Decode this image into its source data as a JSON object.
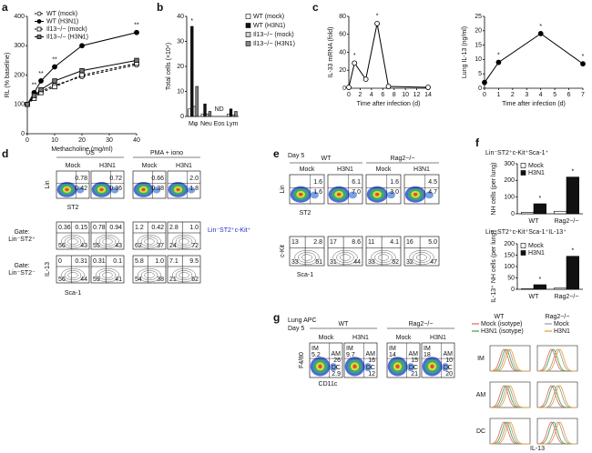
{
  "chart_data": [
    {
      "type": "line",
      "panel": "a",
      "ylabel": "RL (% baseline)",
      "xlabel": "Methacholine (mg/ml)",
      "x": [
        0,
        2.5,
        5,
        10,
        20,
        40
      ],
      "xlim": [
        0,
        40
      ],
      "xticks": [
        0,
        10,
        20,
        30,
        40
      ],
      "ylim": [
        0,
        400
      ],
      "yticks": [
        0,
        100,
        200,
        300,
        400
      ],
      "legend": "top-left",
      "series": [
        {
          "name": "WT (mock)",
          "color": "#000000",
          "fill": "#ffffff",
          "marker": "circle",
          "dashed": true,
          "values": [
            100,
            125,
            145,
            165,
            195,
            235
          ]
        },
        {
          "name": "WT (H3N1)",
          "color": "#000000",
          "fill": "#000000",
          "marker": "circle",
          "dashed": false,
          "values": [
            100,
            140,
            180,
            228,
            300,
            345
          ],
          "annotations": [
            null,
            "**",
            "**",
            "**",
            "*",
            "**"
          ]
        },
        {
          "name": "Il13−/− (mock)",
          "color": "#000000",
          "fill": "#ffffff",
          "marker": "square",
          "dashed": true,
          "values": [
            100,
            120,
            140,
            160,
            200,
            240
          ]
        },
        {
          "name": "Il13−/− (H3N1)",
          "color": "#000000",
          "fill": "#777777",
          "marker": "square",
          "dashed": false,
          "values": [
            100,
            130,
            150,
            180,
            215,
            250
          ]
        }
      ]
    },
    {
      "type": "bar",
      "panel": "b",
      "ylabel": "Total cells (×10⁴)",
      "categories": [
        "Mφ",
        "Neu",
        "Eos",
        "Lym"
      ],
      "ylim": [
        0,
        40
      ],
      "yticks": [
        0,
        10,
        20,
        30,
        40
      ],
      "legend": "right",
      "category_annotations": [
        null,
        null,
        "ND",
        null
      ],
      "series": [
        {
          "name": "WT (mock)",
          "color": "#ffffff",
          "values": [
            3,
            1,
            null,
            1
          ]
        },
        {
          "name": "WT (H3N1)",
          "color": "#111111",
          "values": [
            36,
            5,
            null,
            3
          ],
          "annotations": [
            "*",
            null,
            null,
            null
          ]
        },
        {
          "name": "Il13−/− (mock)",
          "color": "#d0d0d0",
          "values": [
            4,
            1,
            null,
            0.5
          ]
        },
        {
          "name": "Il13−/− (H3N1)",
          "color": "#888888",
          "values": [
            12,
            2,
            null,
            2
          ]
        }
      ]
    },
    {
      "type": "line",
      "panel": "c",
      "ylabel": "IL-33 mRNA (fold)",
      "xlabel": "Time after infection (d)",
      "x": [
        0,
        1,
        3,
        5,
        7,
        14
      ],
      "xlim": [
        0,
        14
      ],
      "xticks": [
        0,
        2,
        4,
        6,
        8,
        10,
        12,
        14
      ],
      "ylim": [
        0,
        80
      ],
      "yticks": [
        0,
        20,
        40,
        60,
        80
      ],
      "series": [
        {
          "color": "#000000",
          "fill": "#ffffff",
          "marker": "circle",
          "dashed": false,
          "values": [
            1,
            28,
            10,
            72,
            2,
            1
          ],
          "annotations": [
            null,
            "*",
            null,
            "*",
            null,
            null
          ]
        }
      ]
    },
    {
      "type": "line",
      "ylabel": "Lung IL-13 (ng/ml)",
      "xlabel": "Time after infection (d)",
      "x": [
        0,
        1,
        4,
        7
      ],
      "xlim": [
        0,
        7
      ],
      "xticks": [
        0,
        1,
        2,
        3,
        4,
        5,
        6,
        7
      ],
      "ylim": [
        0,
        25
      ],
      "yticks": [
        0,
        5,
        10,
        15,
        20,
        25
      ],
      "series": [
        {
          "color": "#000000",
          "fill": "#000000",
          "marker": "circle",
          "dashed": false,
          "values": [
            2,
            9,
            19,
            8.5
          ],
          "annotations": [
            null,
            "*",
            "*",
            "*"
          ]
        }
      ]
    },
    {
      "type": "bar",
      "panel": "f",
      "title": "Lin⁻ST2⁺c-Kit⁺Sca-1⁺",
      "ylabel": "NH cells (per lung)",
      "categories": [
        "WT",
        "Rag2−/−"
      ],
      "ylim": [
        0,
        300
      ],
      "yticks": [
        0,
        100,
        200,
        300
      ],
      "legend": "top-left",
      "series": [
        {
          "name": "Mock",
          "color": "#ffffff",
          "values": [
            8,
            15
          ]
        },
        {
          "name": "H3N1",
          "color": "#111111",
          "values": [
            60,
            220
          ],
          "annotations": [
            "*",
            "*"
          ]
        }
      ]
    },
    {
      "type": "bar",
      "title": "Lin⁻ST2⁺c-Kit⁺Sca-1⁺IL-13⁺",
      "ylabel": "IL-13⁺ NH cells (per lung)",
      "categories": [
        "WT",
        "Rag2−/−"
      ],
      "ylim": [
        0,
        200
      ],
      "yticks": [
        0,
        50,
        100,
        150,
        200
      ],
      "legend": "top-left",
      "series": [
        {
          "name": "Mock",
          "color": "#ffffff",
          "values": [
            2,
            5
          ]
        },
        {
          "name": "H3N1",
          "color": "#111111",
          "values": [
            20,
            145
          ],
          "annotations": [
            "*",
            "*"
          ]
        }
      ]
    }
  ],
  "panel_d": {
    "label": "d",
    "groups": [
      "US",
      "PMA + iono"
    ],
    "columns": [
      "Mock",
      "H3N1",
      "Mock",
      "H3N1"
    ],
    "axis_labels": [
      "Lin",
      "ST2",
      "IL-13",
      "Sca-1"
    ],
    "gates": [
      [
        "Gate:",
        "Lin⁻ST2⁺"
      ],
      [
        "Gate:",
        "Lin⁻ST2⁻"
      ]
    ],
    "rows": [
      [
        [
          "0.78",
          "0.42"
        ],
        [
          "0.72",
          "0.36"
        ],
        [
          "0.66",
          "0.38"
        ],
        [
          "2.0",
          "1.8"
        ]
      ],
      [
        [
          "0.36",
          "0.15",
          "56",
          "43"
        ],
        [
          "0.78",
          "0.94",
          "55",
          "43"
        ],
        [
          "1.2",
          "0.42",
          "62",
          "37"
        ],
        [
          "2.8",
          "1.0",
          "24",
          "72"
        ]
      ],
      [
        [
          "0",
          "0.31",
          "56",
          "44"
        ],
        [
          "0.31",
          "0.1",
          "59",
          "41"
        ],
        [
          "5.8",
          "1.0",
          "54",
          "38"
        ],
        [
          "7.1",
          "9.5",
          "21",
          "62"
        ]
      ]
    ]
  },
  "panel_e": {
    "label": "e",
    "day": "Day 5",
    "groups": [
      "WT",
      "Rag2−/−"
    ],
    "columns": [
      "Mock",
      "H3N1",
      "Mock",
      "H3N1"
    ],
    "axis_labels": [
      "Lin",
      "ST2",
      "c-Kit",
      "Sca-1"
    ],
    "gate": "Lin⁻ST2⁺c-Kit⁺",
    "rows": [
      [
        [
          "1.6",
          "1.6"
        ],
        [
          "6.1",
          "7.0"
        ],
        [
          "1.6",
          "3.0"
        ],
        [
          "4.5",
          "4.7"
        ]
      ],
      [
        [
          "13",
          "2.8",
          "33",
          "51"
        ],
        [
          "17",
          "8.6",
          "31",
          "44"
        ],
        [
          "11",
          "4.1",
          "33",
          "52"
        ],
        [
          "16",
          "5.0",
          "32",
          "47"
        ]
      ]
    ]
  },
  "panel_g": {
    "label": "g",
    "title": "Lung APC",
    "day": "Day 5",
    "groups": [
      "WT",
      "Rag2−/−"
    ],
    "columns": [
      "Mock",
      "H3N1",
      "Mock",
      "H3N1"
    ],
    "axis_labels": [
      "F4/80",
      "CD11c"
    ],
    "gate_names": [
      "IM",
      "AM",
      "DC"
    ],
    "values": [
      [
        "5.2",
        "26",
        "2.9"
      ],
      [
        "9.7",
        "16",
        "12"
      ],
      [
        "14",
        "15",
        "21"
      ],
      [
        "18",
        "10",
        "20"
      ]
    ],
    "histograms": {
      "groups": [
        "WT",
        "Rag2−/−"
      ],
      "legend": [
        [
          {
            "name": "Mock (isotype)",
            "color": "#e06060"
          },
          {
            "name": "H3N1 (isotype)",
            "color": "#40a040"
          }
        ],
        [
          {
            "name": "Mock",
            "color": "#999999"
          },
          {
            "name": "H3N1",
            "color": "#e89a30"
          }
        ]
      ],
      "rows": [
        "IM",
        "AM",
        "DC"
      ],
      "xlabel": "IL-13"
    }
  }
}
